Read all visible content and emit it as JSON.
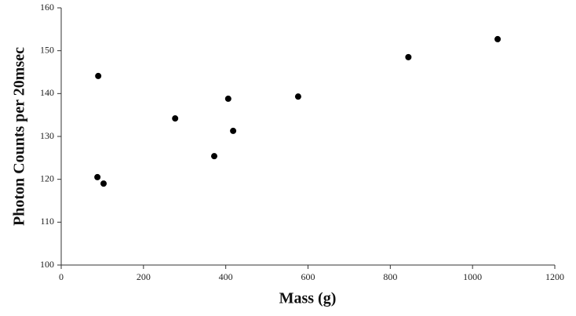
{
  "chart_data": {
    "type": "scatter",
    "x_label": "Mass (g)",
    "y_label": "Photon Counts per 20msec",
    "x": [
      90,
      88,
      103,
      277,
      372,
      406,
      418,
      576,
      844,
      1061
    ],
    "values": [
      144.1,
      120.5,
      119.0,
      134.2,
      125.4,
      138.8,
      131.3,
      139.3,
      148.5,
      152.7
    ],
    "color": "#000000",
    "xlim": [
      0,
      1200
    ],
    "xticks": [
      0,
      200,
      400,
      600,
      800,
      1000,
      1200
    ],
    "ylim": [
      100,
      160
    ],
    "yticks": [
      100,
      110,
      120,
      130,
      140,
      150,
      160
    ],
    "grid": false
  }
}
